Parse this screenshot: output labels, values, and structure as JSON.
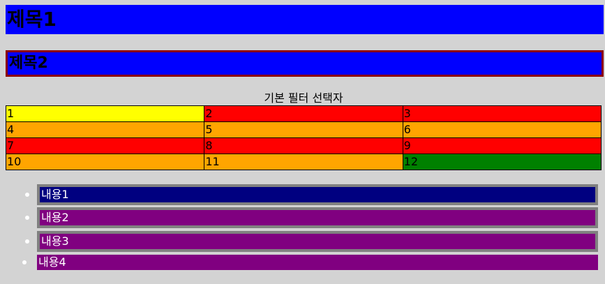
{
  "headings": {
    "title1": "제목1",
    "title2": "제목2"
  },
  "table": {
    "caption": "기본 필터 선택자",
    "rows": [
      [
        {
          "text": "1",
          "color": "#ffff00"
        },
        {
          "text": "2",
          "color": "#ff0000"
        },
        {
          "text": "3",
          "color": "#ff0000"
        }
      ],
      [
        {
          "text": "4",
          "color": "#ffa500"
        },
        {
          "text": "5",
          "color": "#ffa500"
        },
        {
          "text": "6",
          "color": "#ffa500"
        }
      ],
      [
        {
          "text": "7",
          "color": "#ff0000"
        },
        {
          "text": "8",
          "color": "#ff0000"
        },
        {
          "text": "9",
          "color": "#ff0000"
        }
      ],
      [
        {
          "text": "10",
          "color": "#ffa500"
        },
        {
          "text": "11",
          "color": "#ffa500"
        },
        {
          "text": "12",
          "color": "#008000"
        }
      ]
    ]
  },
  "list": {
    "items": [
      {
        "label": "내용1",
        "color": "#000080",
        "bordered": true
      },
      {
        "label": "내용2",
        "color": "#800080",
        "bordered": true
      },
      {
        "label": "내용3",
        "color": "#800080",
        "bordered": true
      },
      {
        "label": "내용4",
        "color": "#800080",
        "bordered": false
      }
    ]
  },
  "colors": {
    "page_background": "#d3d3d3",
    "heading_background": "#0000ff",
    "heading2_border": "#8b0000",
    "list_item_border": "#808080",
    "list_text": "#ffffff"
  }
}
